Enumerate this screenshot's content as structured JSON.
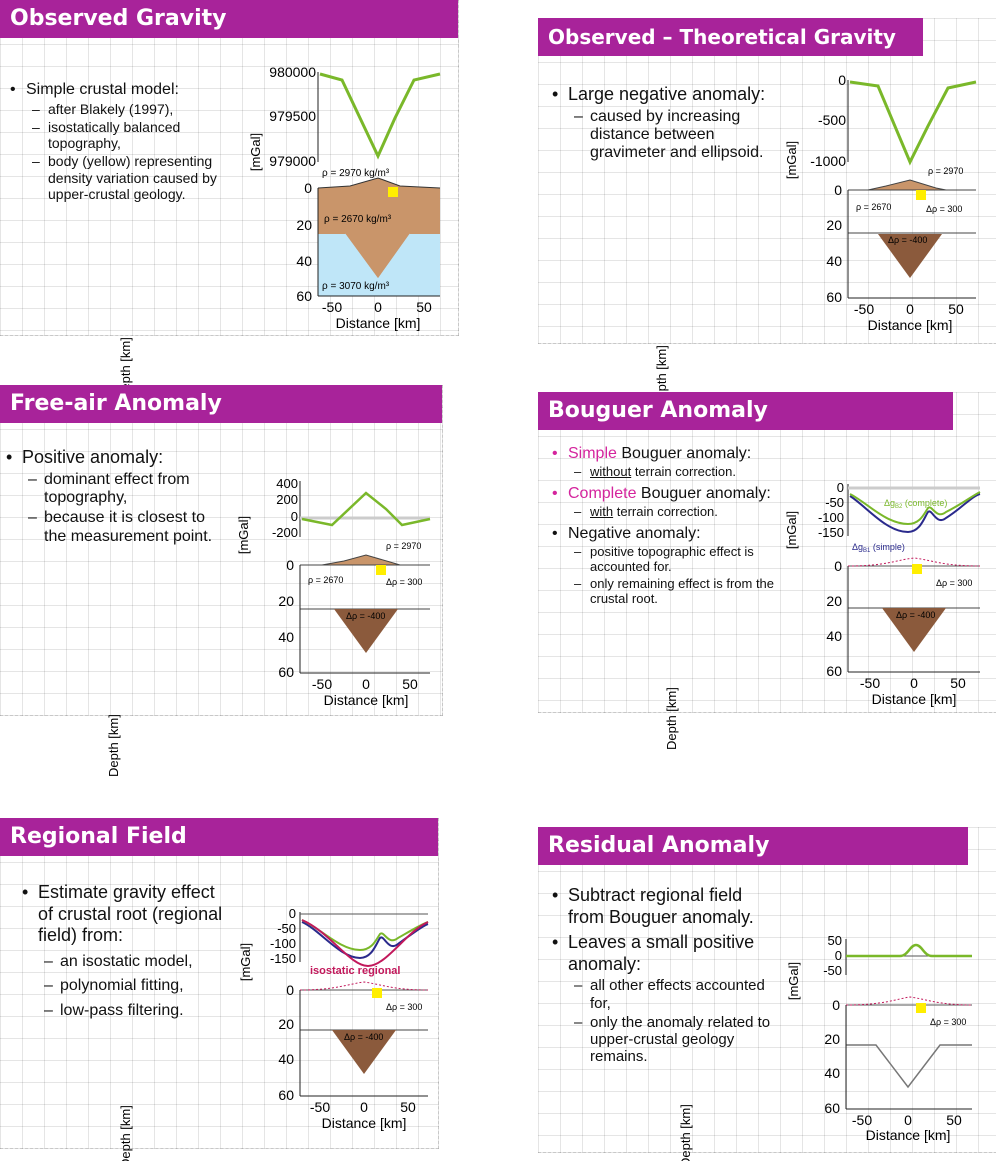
{
  "colors": {
    "title_bg": "#a8239a",
    "gravity_curve": "#7ab82a",
    "simple_curve": "#2a2a8c",
    "isostatic_curve": "#c2185b",
    "topography": "#c9956a",
    "crust": "#b07a55",
    "mantle": "#8fd0f0",
    "root": "#8b5a3c",
    "body": "#ffee00"
  },
  "slides": [
    {
      "title": "Observed Gravity",
      "bullets": [
        {
          "text": "Simple crustal model:",
          "subs": [
            "after Blakely (1997),",
            "isostatically balanced topography,",
            "body (yellow) representing density variation caused by upper-crustal geology."
          ]
        }
      ],
      "figure": {
        "gravity_ylabel": "[mGal]",
        "gravity_ticks": [
          "980000",
          "979500",
          "979000"
        ],
        "depth_ylabel": "Depth [km]",
        "depth_ticks": [
          "0",
          "20",
          "40",
          "60"
        ],
        "x_ticks": [
          "-50",
          "0",
          "50"
        ],
        "xlabel": "Distance [km]",
        "labels": {
          "rho_topo": "ρ = 2970 kg/m³",
          "rho_crust": "ρ = 2670 kg/m³",
          "rho_mantle": "ρ = 3070 kg/m³"
        }
      }
    },
    {
      "title": "Observed – Theoretical Gravity",
      "bullets": [
        {
          "text": "Large negative anomaly:",
          "subs": [
            "caused by increasing distance between gravimeter and ellipsoid."
          ]
        }
      ],
      "figure": {
        "gravity_ylabel": "[mGal]",
        "gravity_ticks": [
          "0",
          "-500",
          "-1000"
        ],
        "depth_ylabel": "Depth [km]",
        "depth_ticks": [
          "0",
          "20",
          "40",
          "60"
        ],
        "x_ticks": [
          "-50",
          "0",
          "50"
        ],
        "xlabel": "Distance [km]",
        "labels": {
          "rho_topo": "ρ = 2970",
          "rho_crust": "ρ = 2670",
          "drho_body": "Δρ = 300",
          "drho_root": "Δρ = -400"
        }
      }
    },
    {
      "title": "Free-air Anomaly",
      "bullets": [
        {
          "text": "Positive anomaly:",
          "subs": [
            "dominant effect from topography,",
            "because it is closest to the measurement point."
          ]
        }
      ],
      "figure": {
        "gravity_ylabel": "[mGal]",
        "gravity_ticks": [
          "400",
          "200",
          "0",
          "-200"
        ],
        "depth_ylabel": "Depth [km]",
        "depth_ticks": [
          "0",
          "20",
          "40",
          "60"
        ],
        "x_ticks": [
          "-50",
          "0",
          "50"
        ],
        "xlabel": "Distance [km]",
        "labels": {
          "rho_topo": "ρ = 2970",
          "rho_crust": "ρ = 2670",
          "drho_body": "Δρ = 300",
          "drho_root": "Δρ = -400"
        }
      }
    },
    {
      "title": "Bouguer Anomaly",
      "bullets": [
        {
          "lead": "Simple",
          "text": " Bouguer anomaly:",
          "sub_prefix": "without",
          "subs": [
            " terrain correction."
          ]
        },
        {
          "lead": "Complete",
          "text": " Bouguer anomaly:",
          "sub_prefix": "with",
          "subs": [
            " terrain correction."
          ]
        },
        {
          "text": "Negative anomaly:",
          "subs": [
            "positive topographic effect is accounted for.",
            "only remaining effect is from the crustal root."
          ]
        }
      ],
      "figure": {
        "gravity_ylabel": "[mGal]",
        "gravity_ticks": [
          "0",
          "-50",
          "-100",
          "-150"
        ],
        "depth_ylabel": "Depth [km]",
        "depth_ticks": [
          "0",
          "20",
          "40",
          "60"
        ],
        "x_ticks": [
          "-50",
          "0",
          "50"
        ],
        "xlabel": "Distance [km]",
        "labels": {
          "complete": "Δg",
          "complete_sub": "B2",
          "complete_tail": " (complete)",
          "simple": "Δg",
          "simple_sub": "B1",
          "simple_tail": " (simple)",
          "drho_body": "Δρ = 300",
          "drho_root": "Δρ = -400"
        }
      }
    },
    {
      "title": "Regional Field",
      "bullets": [
        {
          "text": "Estimate gravity effect of crustal root (regional field) from:",
          "subs": [
            "an isostatic model,",
            "polynomial fitting,",
            "low-pass filtering."
          ]
        }
      ],
      "figure": {
        "gravity_ylabel": "[mGal]",
        "gravity_ticks": [
          "0",
          "-50",
          "-100",
          "-150"
        ],
        "depth_ylabel": "Depth [km]",
        "depth_ticks": [
          "0",
          "20",
          "40",
          "60"
        ],
        "x_ticks": [
          "-50",
          "0",
          "50"
        ],
        "xlabel": "Distance [km]",
        "labels": {
          "isostatic": "isostatic regional",
          "drho_body": "Δρ = 300",
          "drho_root": "Δρ = -400"
        }
      }
    },
    {
      "title": "Residual Anomaly",
      "bullets": [
        {
          "text": "Subtract regional field from Bouguer anomaly.",
          "subs": []
        },
        {
          "text": "Leaves a small positive anomaly:",
          "subs": [
            "all other effects accounted for,",
            "only the anomaly related to upper-crustal geology remains."
          ]
        }
      ],
      "figure": {
        "gravity_ylabel": "[mGal]",
        "gravity_ticks": [
          "50",
          "0",
          "-50"
        ],
        "depth_ylabel": "Depth [km]",
        "depth_ticks": [
          "0",
          "20",
          "40",
          "60"
        ],
        "x_ticks": [
          "-50",
          "0",
          "50"
        ],
        "xlabel": "Distance [km]",
        "labels": {
          "drho_body": "Δρ = 300"
        }
      }
    }
  ]
}
